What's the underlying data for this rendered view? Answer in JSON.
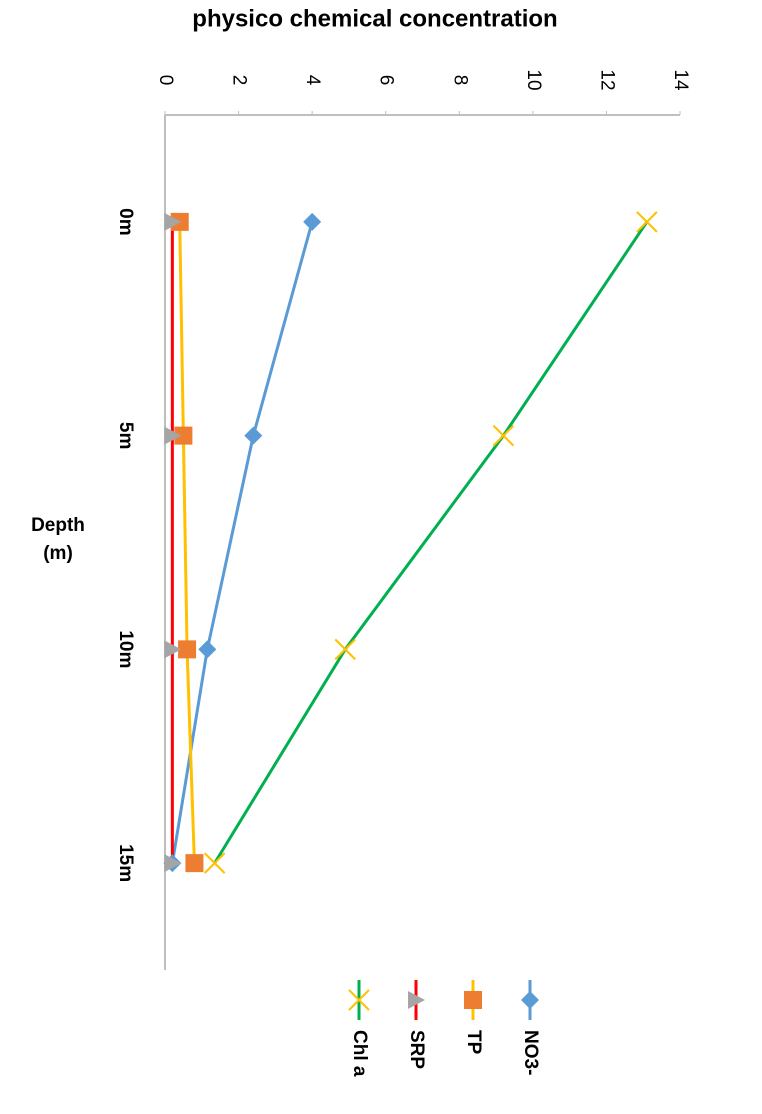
{
  "chart_data": {
    "type": "line",
    "orientation": "horizontal",
    "title": "physico chemical concentration",
    "y_label": "Depth (m)",
    "categories": [
      "0m",
      "5m",
      "10m",
      "15m"
    ],
    "xlim": [
      0,
      14
    ],
    "xticks": [
      0,
      2,
      4,
      6,
      8,
      10,
      12,
      14
    ],
    "series": [
      {
        "name": "NO3-",
        "color": "#5b9bd5",
        "marker_color": "#5b9bd5",
        "marker": "diamond",
        "values": [
          4,
          2.4,
          1.15,
          0.2
        ]
      },
      {
        "name": "TP",
        "color": "#ffc000",
        "marker_color": "#ed7d31",
        "marker": "square",
        "values": [
          0.4,
          0.5,
          0.6,
          0.8
        ]
      },
      {
        "name": "SRP",
        "color": "#ff0000",
        "marker_color": "#a5a5a5",
        "marker": "triangle",
        "values": [
          0.2,
          0.2,
          0.2,
          0.2
        ]
      },
      {
        "name": "Chl a",
        "color": "#00b050",
        "marker_color": "#ffc000",
        "marker": "x",
        "values": [
          13.1,
          9.2,
          4.9,
          1.35
        ]
      }
    ],
    "legend": "bottom"
  }
}
